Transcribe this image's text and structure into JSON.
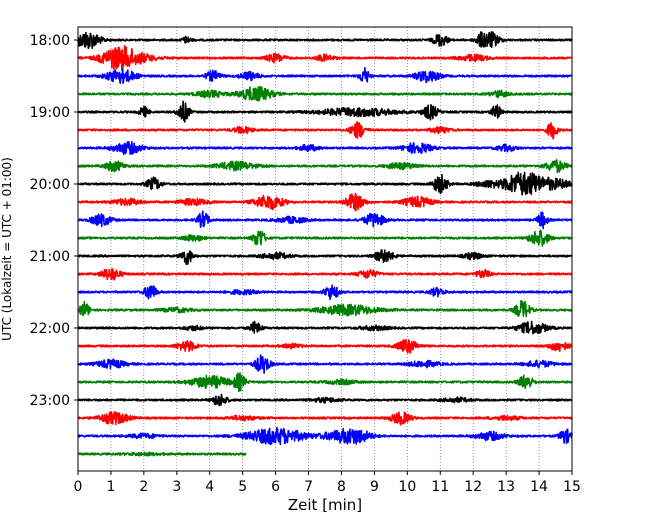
{
  "chart_data": {
    "type": "line",
    "title": "",
    "xlabel": "Zeit  [min]",
    "ylabel": "UTC (Lokalzeit = UTC + 01:00)",
    "xlim": [
      0,
      15
    ],
    "x_ticks": [
      0,
      1,
      2,
      3,
      4,
      5,
      6,
      7,
      8,
      9,
      10,
      11,
      12,
      13,
      14,
      15
    ],
    "x_grid": true,
    "y_tick_labels": [
      "18:00",
      "19:00",
      "20:00",
      "21:00",
      "22:00",
      "23:00"
    ],
    "trace_colors": [
      "#000000",
      "#ff0000",
      "#0000ff",
      "#008000"
    ],
    "traces": [
      {
        "start": "18:00",
        "end_min": 15,
        "bursts": [
          [
            0.3,
            0.25,
            9
          ],
          [
            3.3,
            0.1,
            3
          ],
          [
            11.0,
            0.15,
            6
          ],
          [
            12.5,
            0.2,
            8
          ],
          [
            12.2,
            0.1,
            4
          ]
        ]
      },
      {
        "start": "18:15",
        "end_min": 15,
        "bursts": [
          [
            1.2,
            0.35,
            8
          ],
          [
            1.6,
            0.5,
            5
          ],
          [
            6.0,
            0.2,
            4
          ],
          [
            7.5,
            0.2,
            3
          ],
          [
            12.0,
            0.3,
            3
          ]
        ]
      },
      {
        "start": "18:30",
        "end_min": 15,
        "bursts": [
          [
            1.3,
            0.3,
            7
          ],
          [
            4.1,
            0.15,
            5
          ],
          [
            5.2,
            0.2,
            4
          ],
          [
            8.7,
            0.1,
            8
          ],
          [
            10.6,
            0.25,
            6
          ]
        ]
      },
      {
        "start": "18:45",
        "end_min": 15,
        "bursts": [
          [
            5.4,
            0.35,
            7
          ],
          [
            4.0,
            0.3,
            3
          ],
          [
            12.8,
            0.2,
            3
          ]
        ]
      },
      {
        "start": "19:00",
        "end_min": 15,
        "bursts": [
          [
            3.2,
            0.12,
            10
          ],
          [
            2.0,
            0.1,
            5
          ],
          [
            8.5,
            0.8,
            4
          ],
          [
            10.7,
            0.15,
            7
          ],
          [
            12.7,
            0.1,
            7
          ]
        ]
      },
      {
        "start": "19:15",
        "end_min": 15,
        "bursts": [
          [
            8.5,
            0.15,
            8
          ],
          [
            5.0,
            0.2,
            3
          ],
          [
            14.4,
            0.1,
            9
          ],
          [
            11.0,
            0.2,
            3
          ]
        ]
      },
      {
        "start": "19:30",
        "end_min": 15,
        "bursts": [
          [
            1.5,
            0.3,
            6
          ],
          [
            7.0,
            0.2,
            3
          ],
          [
            10.3,
            0.3,
            5
          ],
          [
            13.0,
            0.2,
            3
          ]
        ]
      },
      {
        "start": "19:45",
        "end_min": 15,
        "bursts": [
          [
            1.1,
            0.2,
            5
          ],
          [
            4.8,
            0.4,
            4
          ],
          [
            14.5,
            0.2,
            6
          ],
          [
            9.8,
            0.3,
            3
          ]
        ]
      },
      {
        "start": "20:00",
        "end_min": 15,
        "bursts": [
          [
            2.3,
            0.15,
            6
          ],
          [
            11.0,
            0.15,
            9
          ],
          [
            13.5,
            0.35,
            13
          ],
          [
            14.4,
            0.4,
            5
          ],
          [
            12.5,
            0.3,
            3
          ]
        ]
      },
      {
        "start": "20:15",
        "end_min": 15,
        "bursts": [
          [
            5.8,
            0.3,
            7
          ],
          [
            8.4,
            0.2,
            8
          ],
          [
            10.3,
            0.3,
            5
          ],
          [
            1.5,
            0.3,
            3
          ],
          [
            3.5,
            0.3,
            3
          ]
        ]
      },
      {
        "start": "20:30",
        "end_min": 15,
        "bursts": [
          [
            0.7,
            0.2,
            6
          ],
          [
            3.8,
            0.12,
            8
          ],
          [
            9.0,
            0.2,
            7
          ],
          [
            14.1,
            0.1,
            8
          ],
          [
            6.5,
            0.3,
            3
          ]
        ]
      },
      {
        "start": "20:45",
        "end_min": 15,
        "bursts": [
          [
            5.5,
            0.12,
            9
          ],
          [
            14.0,
            0.2,
            8
          ],
          [
            3.5,
            0.2,
            3
          ]
        ]
      },
      {
        "start": "21:00",
        "end_min": 15,
        "bursts": [
          [
            3.3,
            0.12,
            8
          ],
          [
            9.3,
            0.2,
            6
          ],
          [
            6.0,
            0.3,
            3
          ],
          [
            12.0,
            0.2,
            3
          ]
        ]
      },
      {
        "start": "21:15",
        "end_min": 15,
        "bursts": [
          [
            1.0,
            0.2,
            6
          ],
          [
            8.8,
            0.2,
            4
          ],
          [
            12.3,
            0.15,
            4
          ]
        ]
      },
      {
        "start": "21:30",
        "end_min": 15,
        "bursts": [
          [
            2.2,
            0.12,
            8
          ],
          [
            7.7,
            0.15,
            7
          ],
          [
            10.9,
            0.15,
            4
          ],
          [
            5.0,
            0.3,
            2
          ]
        ]
      },
      {
        "start": "21:45",
        "end_min": 15,
        "bursts": [
          [
            0.2,
            0.1,
            8
          ],
          [
            8.2,
            0.6,
            5
          ],
          [
            13.5,
            0.15,
            9
          ],
          [
            3.0,
            0.3,
            2
          ]
        ]
      },
      {
        "start": "22:00",
        "end_min": 15,
        "bursts": [
          [
            5.4,
            0.12,
            6
          ],
          [
            13.8,
            0.3,
            6
          ],
          [
            3.5,
            0.2,
            2
          ],
          [
            9.0,
            0.3,
            2
          ]
        ]
      },
      {
        "start": "22:15",
        "end_min": 15,
        "bursts": [
          [
            3.3,
            0.2,
            5
          ],
          [
            10.0,
            0.2,
            7
          ],
          [
            14.6,
            0.2,
            5
          ],
          [
            6.5,
            0.2,
            2
          ]
        ]
      },
      {
        "start": "22:30",
        "end_min": 15,
        "bursts": [
          [
            5.6,
            0.15,
            9
          ],
          [
            1.0,
            0.3,
            4
          ],
          [
            10.5,
            0.3,
            3
          ],
          [
            14.0,
            0.3,
            3
          ]
        ]
      },
      {
        "start": "22:45",
        "end_min": 15,
        "bursts": [
          [
            4.0,
            0.4,
            6
          ],
          [
            4.9,
            0.12,
            8
          ],
          [
            13.6,
            0.15,
            7
          ],
          [
            8.0,
            0.3,
            2
          ]
        ]
      },
      {
        "start": "23:00",
        "end_min": 15,
        "bursts": [
          [
            4.3,
            0.15,
            6
          ],
          [
            7.5,
            0.3,
            2
          ],
          [
            11.5,
            0.3,
            2
          ]
        ]
      },
      {
        "start": "23:15",
        "end_min": 15,
        "bursts": [
          [
            1.1,
            0.3,
            6
          ],
          [
            9.8,
            0.2,
            6
          ],
          [
            5.0,
            0.3,
            2
          ],
          [
            13.0,
            0.3,
            2
          ]
        ]
      },
      {
        "start": "23:30",
        "end_min": 15,
        "bursts": [
          [
            6.0,
            0.6,
            8
          ],
          [
            8.0,
            0.4,
            5
          ],
          [
            8.5,
            0.3,
            5
          ],
          [
            12.5,
            0.3,
            4
          ],
          [
            14.8,
            0.12,
            7
          ],
          [
            2.0,
            0.3,
            2
          ]
        ]
      },
      {
        "start": "23:45",
        "end_min": 5.1,
        "bursts": [
          [
            2.0,
            0.4,
            1
          ]
        ]
      }
    ]
  }
}
